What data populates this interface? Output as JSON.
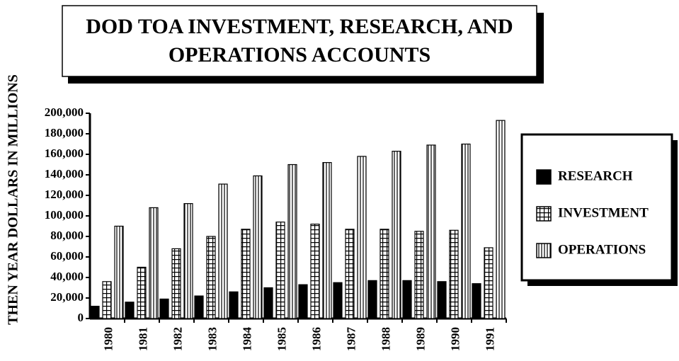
{
  "chart_data": {
    "type": "bar",
    "title": [
      "DOD TOA INVESTMENT, RESEARCH, AND",
      "OPERATIONS ACCOUNTS"
    ],
    "y_label": "THEN YEAR DOLLARS IN MILLIONS",
    "categories": [
      "1980",
      "1981",
      "1982",
      "1983",
      "1984",
      "1985",
      "1986",
      "1987",
      "1988",
      "1989",
      "1990",
      "1991"
    ],
    "series": [
      {
        "name": "RESEARCH",
        "color": "#000000",
        "pattern": "solid",
        "values": [
          12000,
          16000,
          19000,
          22000,
          26000,
          30000,
          33000,
          35000,
          37000,
          37000,
          36000,
          34000
        ]
      },
      {
        "name": "INVESTMENT",
        "color": "#000000",
        "pattern": "grid",
        "values": [
          36000,
          50000,
          68000,
          80000,
          87000,
          94000,
          92000,
          87000,
          87000,
          85000,
          86000,
          69000
        ]
      },
      {
        "name": "OPERATIONS",
        "color": "#000000",
        "pattern": "stripes",
        "values": [
          90000,
          108000,
          112000,
          131000,
          139000,
          150000,
          152000,
          158000,
          163000,
          169000,
          170000,
          193000
        ]
      }
    ],
    "ylim": [
      0,
      200000
    ],
    "yticks": [
      0,
      {
        "value": 20000,
        "label": "20,000"
      },
      {
        "value": 40000,
        "label": "40,000"
      },
      {
        "value": 60000,
        "label": "60,000"
      },
      {
        "value": 80000,
        "label": "80,000"
      },
      {
        "value": 100000,
        "label": "100,000"
      },
      {
        "value": 120000,
        "label": "120,000"
      },
      {
        "value": 140000,
        "label": "140,000"
      },
      {
        "value": 160000,
        "label": "160,000"
      },
      {
        "value": 180000,
        "label": "180,000"
      },
      {
        "value": 200000,
        "label": "200,000"
      }
    ],
    "legend": "right"
  }
}
